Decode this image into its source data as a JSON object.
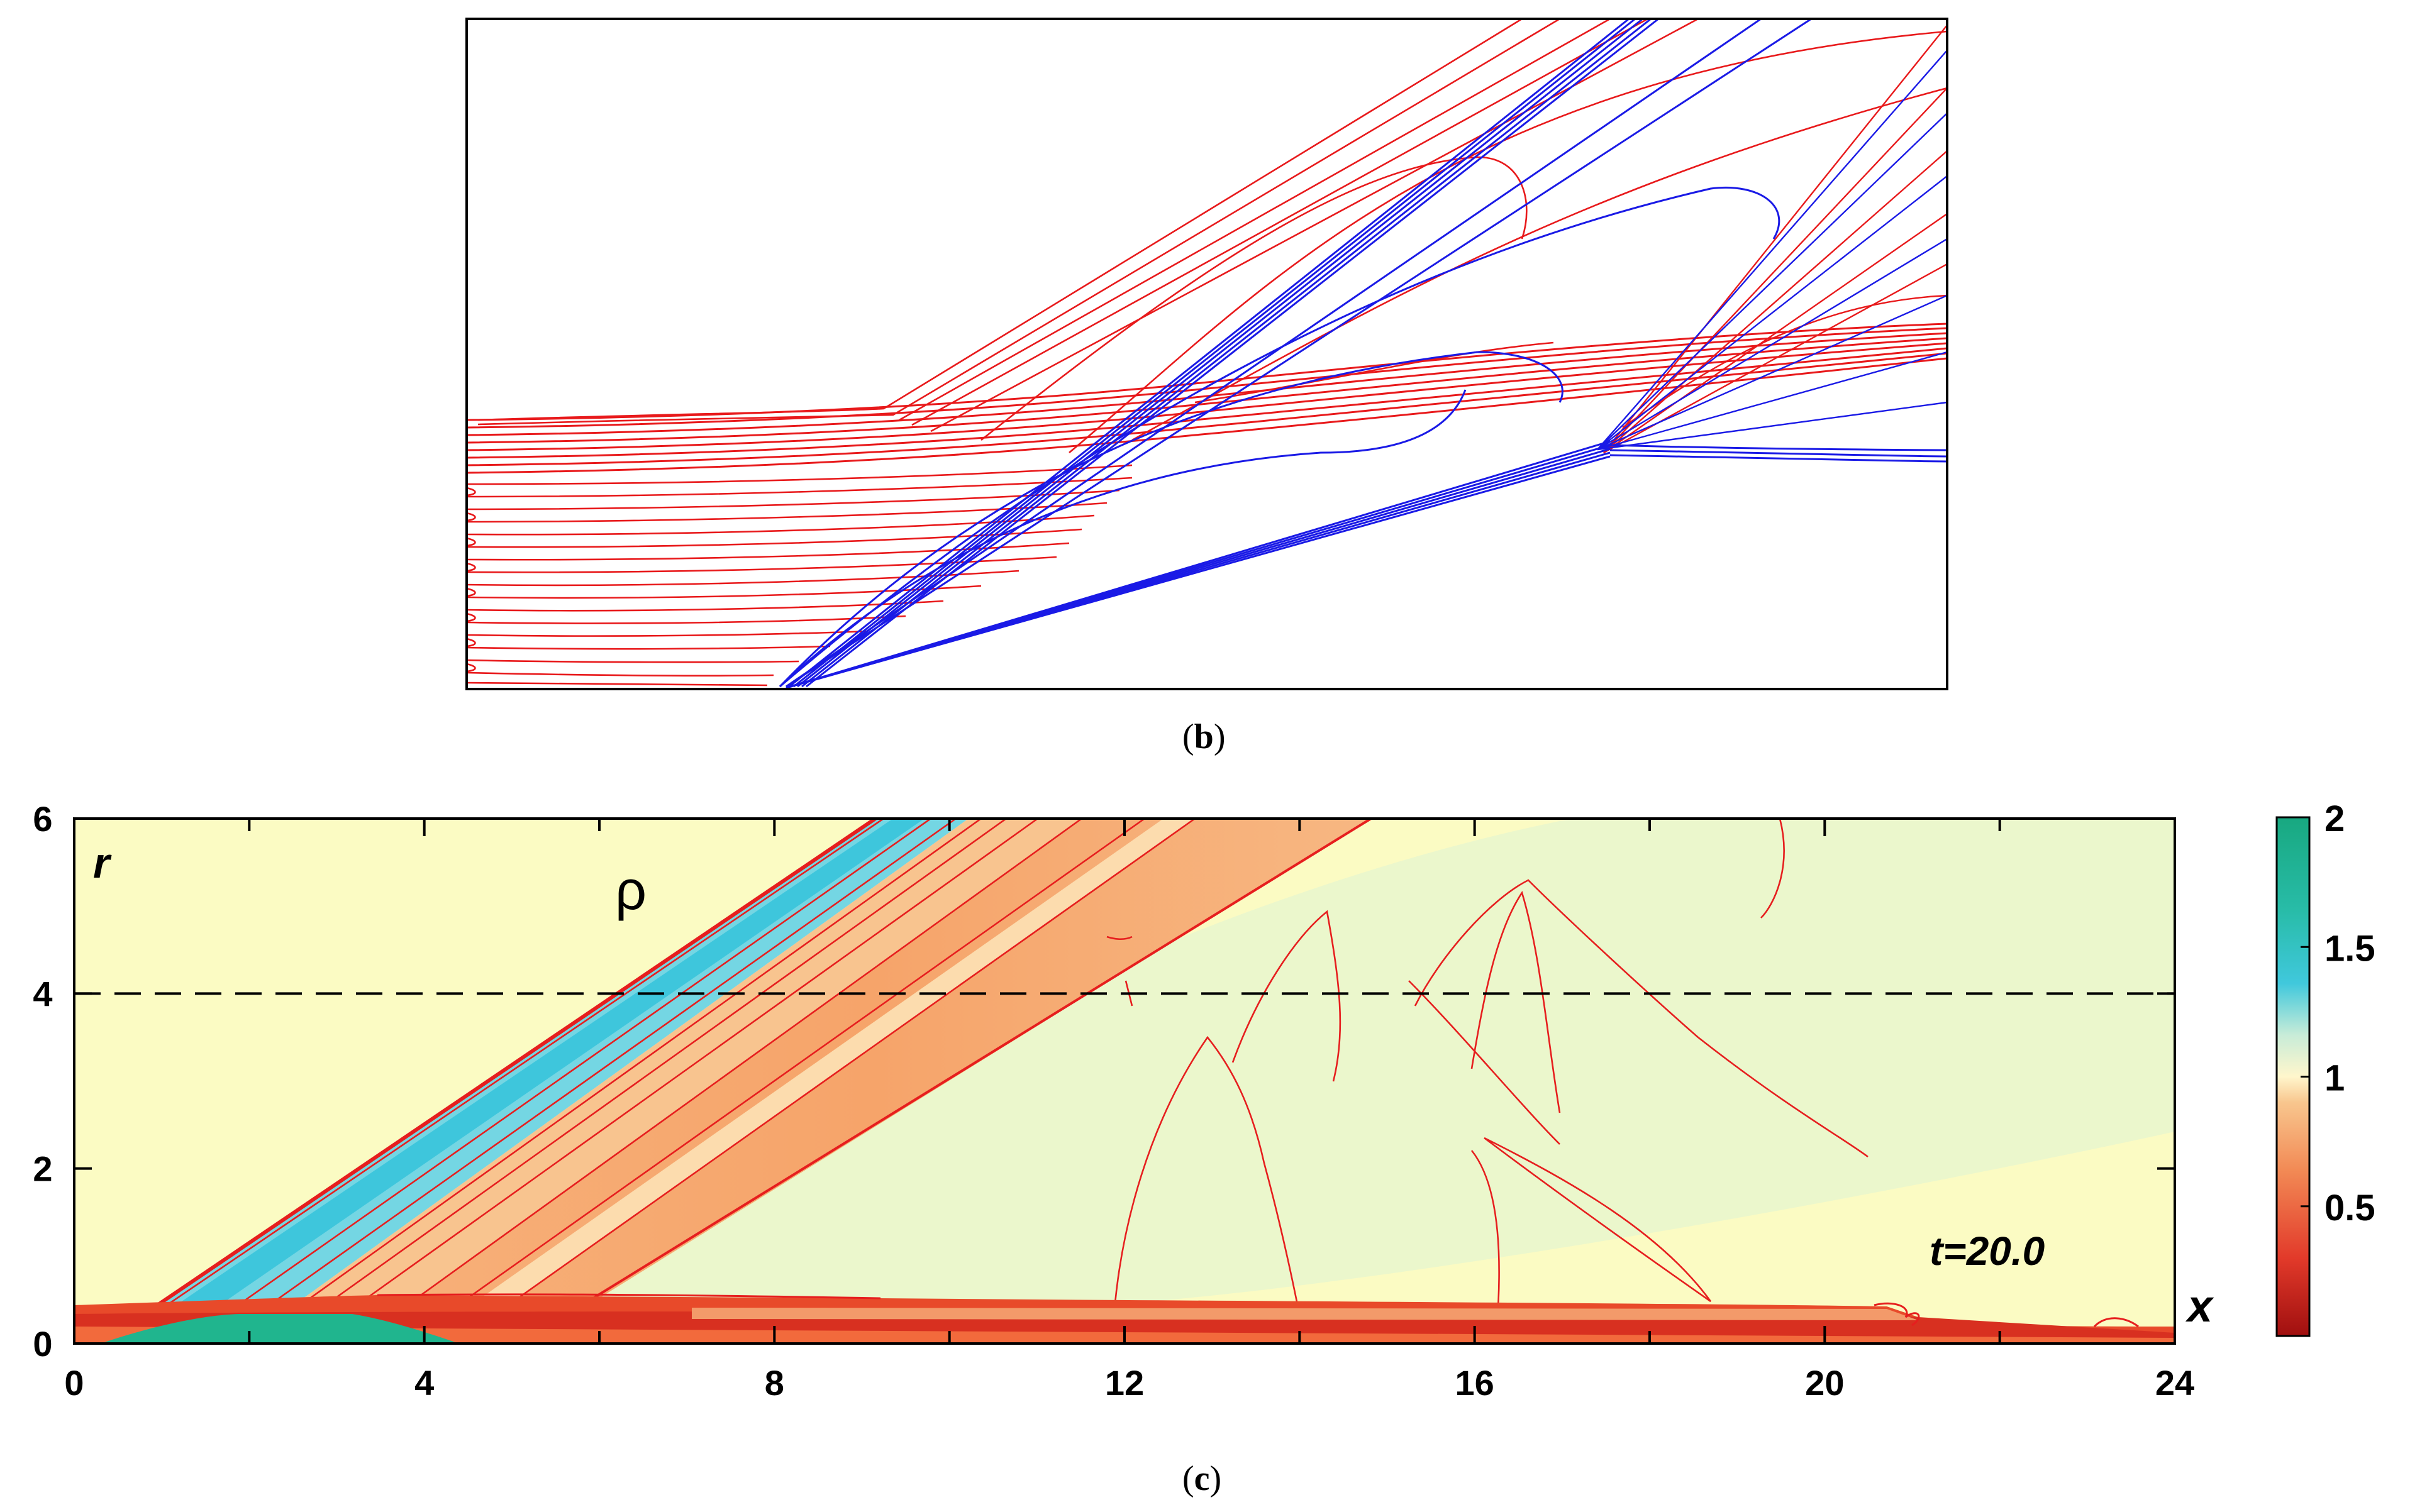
{
  "panel_b": {
    "caption_letter": "b",
    "description_colors": {
      "red_contours": "#e8191b",
      "blue_contours": "#1a1ae6"
    }
  },
  "panel_c": {
    "caption_letter": "c",
    "field_label": "ρ",
    "r_axis_label": "r",
    "x_axis_label": "x",
    "time_label": "t=20.0",
    "dashed_line_r": 4,
    "colors": {
      "background": "#fbfbc3",
      "dark_red": "#b41414",
      "red": "#e61e1e",
      "orange": "#f5a268",
      "cream": "#fdf2c6",
      "light_blue": "#32c8dc",
      "teal": "#20b58e"
    }
  },
  "chart_data": [
    {
      "type": "contour",
      "panel": "b",
      "series": [
        {
          "name": "red contours",
          "color": "#e8191b"
        },
        {
          "name": "blue contours",
          "color": "#1a1ae6"
        }
      ]
    },
    {
      "type": "heatmap",
      "panel": "c",
      "title": "ρ",
      "xlabel": "x",
      "ylabel": "r",
      "xlim": [
        0,
        24
      ],
      "ylim": [
        0,
        6
      ],
      "x_ticks": [
        0,
        4,
        8,
        12,
        16,
        20,
        24
      ],
      "y_ticks": [
        0,
        2,
        4,
        6
      ],
      "annotation": "t=20.0",
      "colorbar": {
        "min": 0,
        "max": 2,
        "ticks": [
          0.5,
          1,
          1.5,
          2
        ],
        "tick_labels": [
          "0.5",
          "1",
          "1.5",
          "2"
        ]
      }
    }
  ]
}
